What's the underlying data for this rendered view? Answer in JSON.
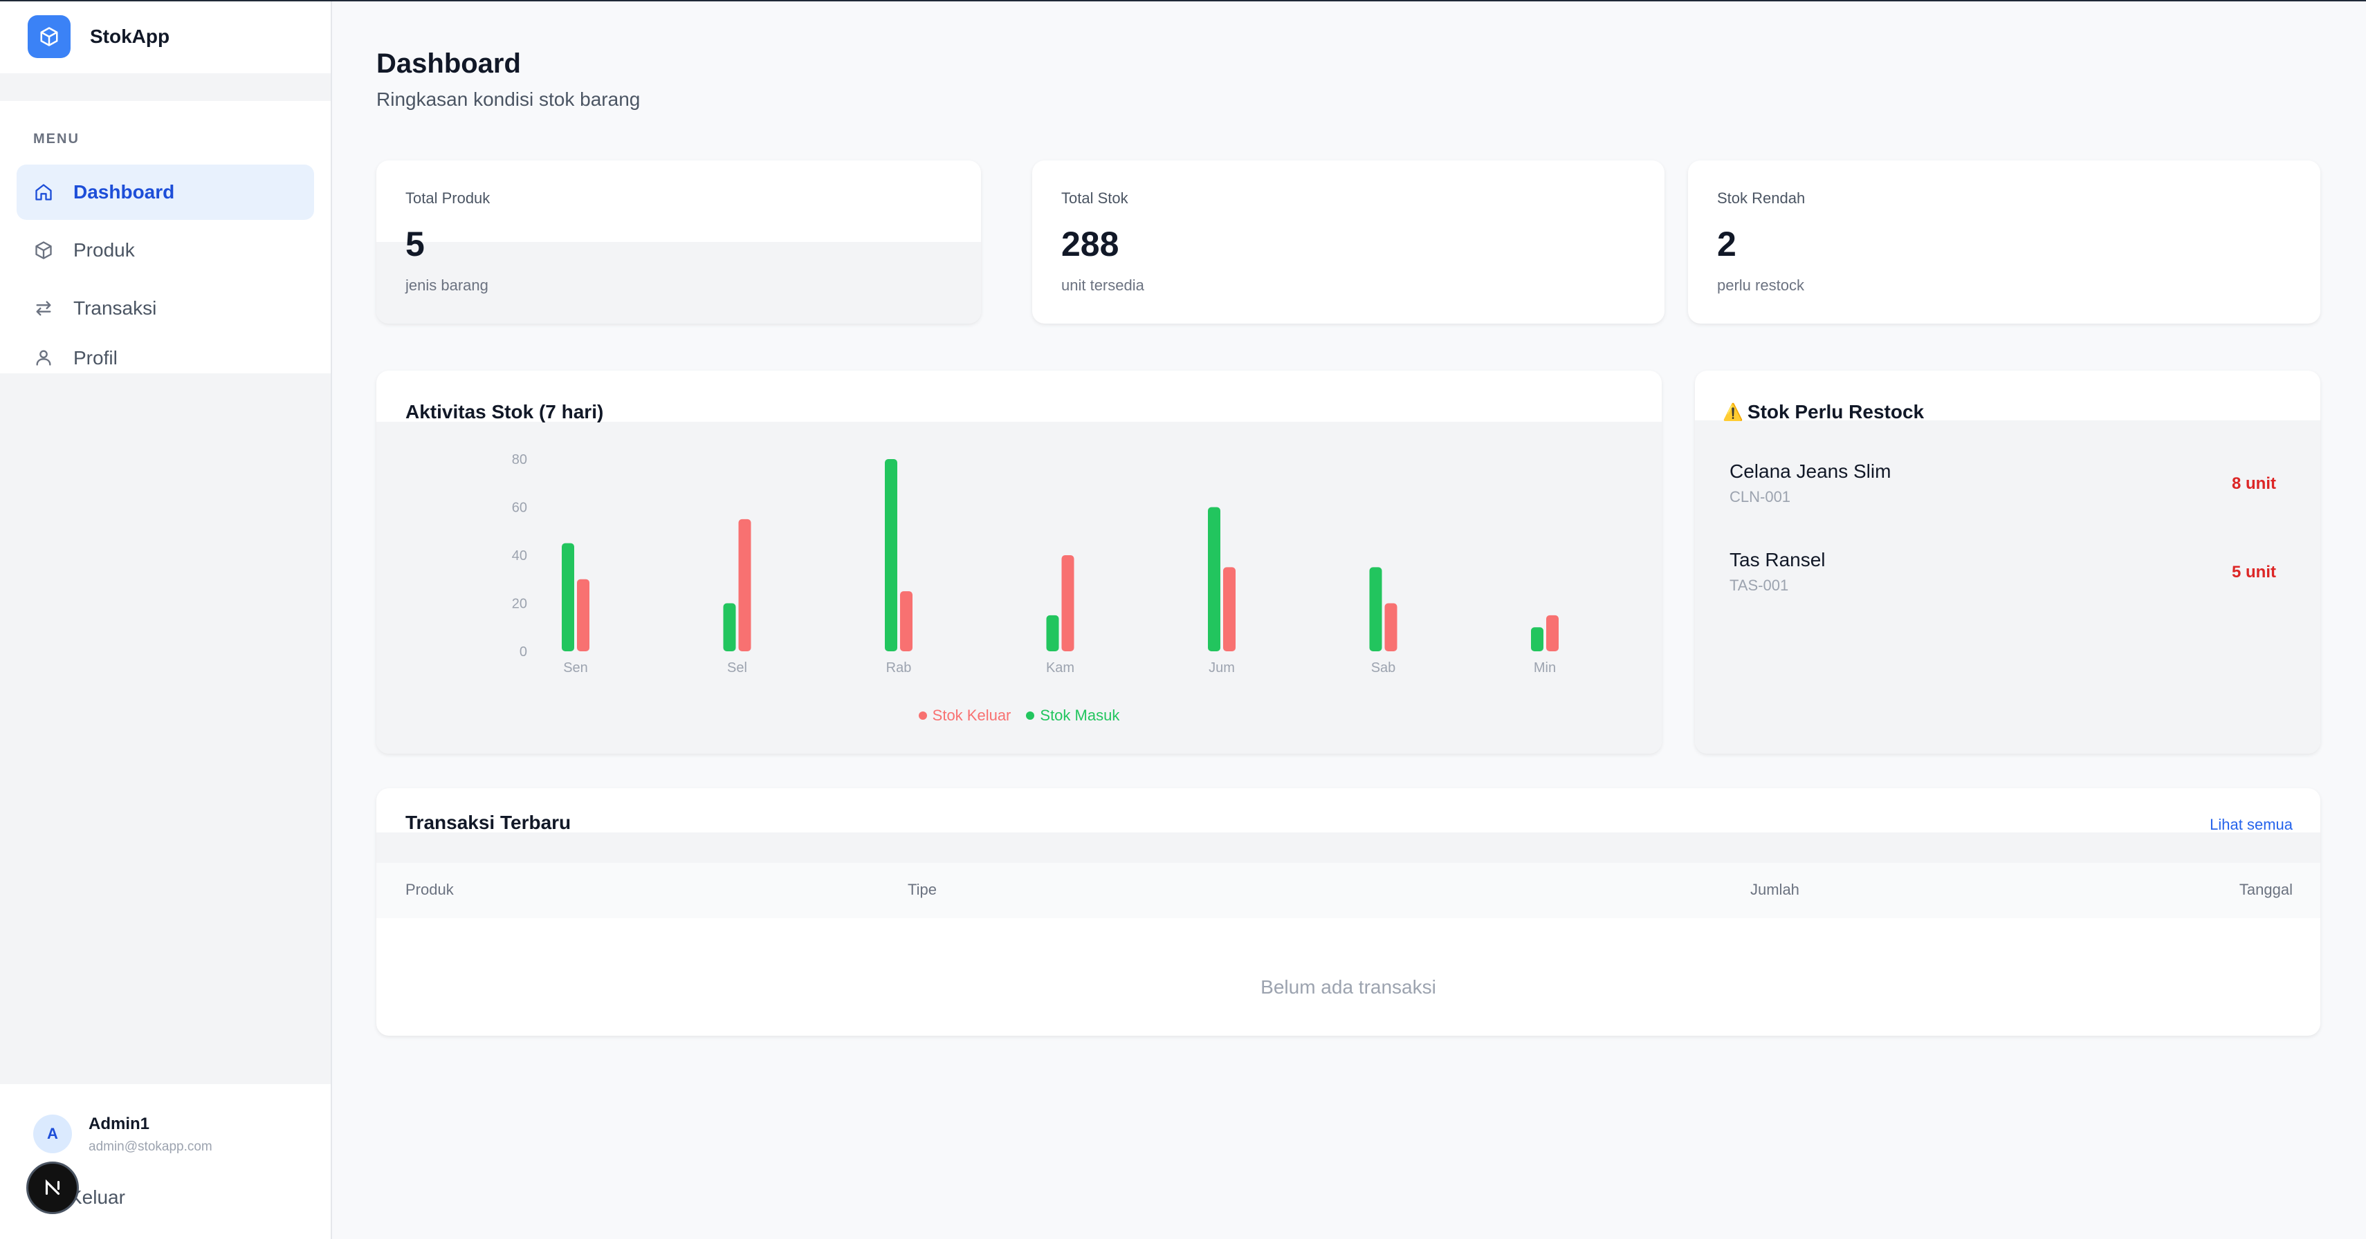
{
  "app": {
    "name": "StokApp",
    "logo_icon": "cube-icon",
    "accent": "#3b82f6"
  },
  "sidebar": {
    "menu_heading": "MENU",
    "items": [
      {
        "label": "Dashboard",
        "icon": "home-icon",
        "active": true
      },
      {
        "label": "Produk",
        "icon": "box-icon",
        "active": false
      },
      {
        "label": "Transaksi",
        "icon": "swap-icon",
        "active": false
      },
      {
        "label": "Profil",
        "icon": "user-icon",
        "active": false
      }
    ],
    "user": {
      "initial": "A",
      "name": "Admin1",
      "email": "admin@stokapp.com"
    },
    "logout_label": "Keluar"
  },
  "header": {
    "title": "Dashboard",
    "subtitle": "Ringkasan kondisi stok barang"
  },
  "stats": [
    {
      "label": "Total Produk",
      "value": "5",
      "sub": "jenis barang"
    },
    {
      "label": "Total Stok",
      "value": "288",
      "sub": "unit tersedia"
    },
    {
      "label": "Stok Rendah",
      "value": "2",
      "sub": "perlu restock"
    }
  ],
  "activity": {
    "title": "Aktivitas Stok (7 hari)",
    "legend": [
      "Stok Keluar",
      "Stok Masuk"
    ]
  },
  "chart_data": {
    "type": "bar",
    "title": "Aktivitas Stok (7 hari)",
    "categories": [
      "Sen",
      "Sel",
      "Rab",
      "Kam",
      "Jum",
      "Sab",
      "Min"
    ],
    "series": [
      {
        "name": "Stok Masuk",
        "color": "#22c55e",
        "values": [
          45,
          20,
          80,
          15,
          60,
          35,
          10
        ]
      },
      {
        "name": "Stok Keluar",
        "color": "#f87171",
        "values": [
          30,
          55,
          25,
          40,
          35,
          20,
          15
        ]
      }
    ],
    "yticks": [
      0,
      20,
      40,
      60,
      80
    ],
    "ylim": [
      0,
      80
    ],
    "grid": false,
    "legend_position": "bottom"
  },
  "restock": {
    "title": "Stok Perlu Restock",
    "warning_icon": "⚠️",
    "items": [
      {
        "name": "Celana Jeans Slim",
        "sku": "CLN-001",
        "qty": "8 unit"
      },
      {
        "name": "Tas Ransel",
        "sku": "TAS-001",
        "qty": "5 unit"
      }
    ]
  },
  "transactions": {
    "title": "Transaksi Terbaru",
    "view_all": "Lihat semua",
    "columns": [
      "Produk",
      "Tipe",
      "Jumlah",
      "Tanggal"
    ],
    "empty": "Belum ada transaksi"
  }
}
